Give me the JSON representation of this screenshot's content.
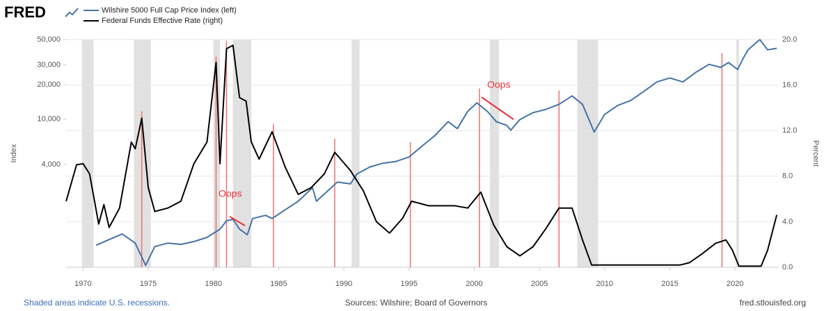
{
  "header": {
    "logo": "FRED"
  },
  "chart_data": {
    "type": "line",
    "series": [
      {
        "name": "Wilshire 5000 Full Cap Price Index (left)",
        "color": "#4572a7",
        "axis": "y",
        "x": [
          1971.0,
          1972.0,
          1973.0,
          1974.0,
          1974.8,
          1975.5,
          1976.5,
          1977.5,
          1978.5,
          1979.5,
          1980.5,
          1981.0,
          1981.5,
          1982.0,
          1982.6,
          1983.0,
          1984.0,
          1984.5,
          1985.5,
          1986.5,
          1987.6,
          1987.9,
          1988.5,
          1989.5,
          1990.5,
          1991.0,
          1992.0,
          1993.0,
          1994.0,
          1995.0,
          1996.0,
          1997.0,
          1998.0,
          1998.7,
          1999.5,
          2000.2,
          2001.0,
          2001.7,
          2002.5,
          2002.8,
          2003.5,
          2004.5,
          2005.5,
          2006.5,
          2007.5,
          2008.3,
          2009.2,
          2010.0,
          2011.0,
          2012.0,
          2013.0,
          2014.0,
          2015.0,
          2016.0,
          2017.0,
          2018.0,
          2018.9,
          2019.5,
          2020.2,
          2020.6,
          2021.0,
          2021.9,
          2022.5,
          2023.2
        ],
        "values": [
          780,
          875,
          980,
          815,
          520,
          760,
          815,
          795,
          840,
          915,
          1080,
          1280,
          1320,
          1080,
          965,
          1340,
          1430,
          1340,
          1600,
          1900,
          2500,
          1900,
          2200,
          2800,
          2700,
          3300,
          3800,
          4100,
          4250,
          4650,
          5800,
          7200,
          9500,
          8250,
          11700,
          13900,
          11700,
          9500,
          8800,
          8000,
          9900,
          11400,
          12200,
          13500,
          16000,
          13500,
          7700,
          11000,
          13200,
          14600,
          17500,
          21200,
          23000,
          21200,
          25800,
          30300,
          28500,
          31400,
          27300,
          33800,
          40600,
          50000,
          40600,
          41900
        ]
      },
      {
        "name": "Federal Funds Effective Rate (right)",
        "color": "#000000",
        "axis": "y2",
        "x": [
          1968.7,
          1969.5,
          1970.0,
          1970.5,
          1971.2,
          1971.6,
          1972.0,
          1972.8,
          1973.7,
          1974.0,
          1974.5,
          1975.0,
          1975.5,
          1976.5,
          1977.5,
          1978.5,
          1979.5,
          1980.2,
          1980.5,
          1981.0,
          1981.5,
          1982.0,
          1982.5,
          1982.9,
          1983.5,
          1984.5,
          1985.5,
          1986.5,
          1987.5,
          1988.5,
          1989.3,
          1990.5,
          1991.5,
          1992.5,
          1993.5,
          1994.5,
          1995.2,
          1996.5,
          1998.5,
          1999.5,
          2000.5,
          2001.5,
          2002.5,
          2003.5,
          2004.5,
          2005.5,
          2006.5,
          2007.5,
          2008.3,
          2009.0,
          2015.8,
          2016.5,
          2017.5,
          2018.5,
          2019.3,
          2019.8,
          2020.3,
          2022.0,
          2022.5,
          2023.2
        ],
        "values": [
          5.8,
          9.0,
          9.1,
          8.2,
          3.8,
          5.5,
          3.5,
          5.2,
          11.0,
          10.4,
          13.1,
          7.0,
          4.9,
          5.2,
          5.8,
          9.1,
          11.0,
          18.0,
          9.1,
          19.2,
          19.5,
          14.9,
          14.6,
          11.0,
          9.5,
          11.9,
          8.8,
          6.4,
          7.0,
          8.2,
          10.1,
          8.5,
          6.7,
          4.0,
          3.0,
          4.3,
          5.8,
          5.4,
          5.4,
          5.2,
          6.6,
          3.7,
          1.8,
          1.0,
          1.8,
          3.4,
          5.2,
          5.2,
          2.4,
          0.2,
          0.2,
          0.4,
          1.2,
          2.1,
          2.4,
          1.5,
          0.1,
          0.1,
          1.5,
          4.6
        ]
      }
    ],
    "xlim": [
      1968.7,
      2023.3
    ],
    "xticks": [
      1970,
      1975,
      1980,
      1985,
      1990,
      1995,
      2000,
      2005,
      2010,
      2015,
      2020
    ],
    "ylog": true,
    "ylim": [
      500,
      50000
    ],
    "yticks": [
      {
        "value": 4000,
        "label": "4,000"
      },
      {
        "value": 10000,
        "label": "10,000"
      },
      {
        "value": 20000,
        "label": "20,000"
      },
      {
        "value": 30000,
        "label": "30,000"
      },
      {
        "value": 50000,
        "label": "50,000"
      }
    ],
    "y2lim": [
      0,
      20
    ],
    "y2ticks": [
      {
        "value": 0,
        "label": "0.0"
      },
      {
        "value": 4,
        "label": "4.0"
      },
      {
        "value": 8,
        "label": "8.0"
      },
      {
        "value": 12,
        "label": "12.0"
      },
      {
        "value": 16,
        "label": "16.0"
      },
      {
        "value": 20,
        "label": "20.0"
      }
    ],
    "grid": true,
    "ylabel": "Index",
    "y2label": "Percent",
    "recessions": [
      [
        1969.9,
        1970.8
      ],
      [
        1973.9,
        1975.2
      ],
      [
        1980.0,
        1980.5
      ],
      [
        1981.5,
        1982.9
      ],
      [
        1990.6,
        1991.2
      ],
      [
        2001.2,
        2001.9
      ],
      [
        2007.9,
        2009.5
      ],
      [
        2020.1,
        2020.3
      ]
    ],
    "markers": {
      "color": "#f07070",
      "x": [
        1974.5,
        1980.2,
        1981.0,
        1984.6,
        1989.3,
        1995.1,
        2000.4,
        2006.5,
        2019.0
      ],
      "top": [
        13.7,
        18.5,
        19.9,
        12.6,
        11.3,
        11.0,
        15.7,
        15.5,
        18.8
      ]
    },
    "annotations": [
      "Oops",
      "Oops"
    ]
  },
  "footer": {
    "left": "Shaded areas indicate U.S. recessions.",
    "center": "Sources: Wilshire; Board of Governors",
    "right": "fred.stlouisfed.org"
  }
}
